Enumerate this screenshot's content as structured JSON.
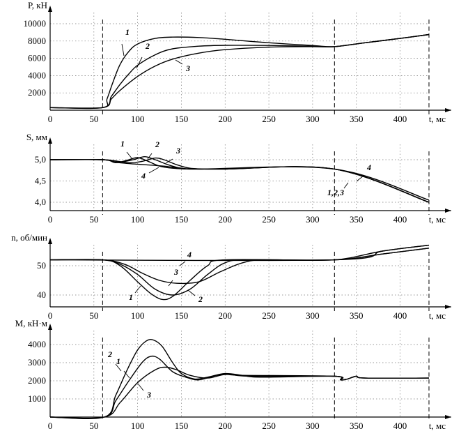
{
  "chart_data": [
    {
      "type": "line",
      "ylabel": "P, кН",
      "xlabel": "t, мс",
      "xlim": [
        0,
        435
      ],
      "ylim": [
        0,
        10000
      ],
      "xticks": [
        0,
        50,
        100,
        150,
        200,
        250,
        300,
        350,
        400
      ],
      "yticks": [
        2000,
        4000,
        6000,
        8000,
        10000
      ],
      "vlines": [
        60,
        325,
        433
      ],
      "series": [
        {
          "name": "1",
          "points": [
            [
              0,
              300
            ],
            [
              60,
              300
            ],
            [
              65,
              1300
            ],
            [
              72,
              3300
            ],
            [
              80,
              5300
            ],
            [
              90,
              6800
            ],
            [
              100,
              7650
            ],
            [
              120,
              8300
            ],
            [
              140,
              8450
            ],
            [
              170,
              8400
            ],
            [
              200,
              8200
            ],
            [
              250,
              7800
            ],
            [
              300,
              7480
            ],
            [
              325,
              7350
            ],
            [
              360,
              7800
            ],
            [
              400,
              8300
            ],
            [
              433,
              8750
            ]
          ]
        },
        {
          "name": "2",
          "points": [
            [
              0,
              300
            ],
            [
              60,
              300
            ],
            [
              70,
              1600
            ],
            [
              80,
              3000
            ],
            [
              90,
              4200
            ],
            [
              100,
              5200
            ],
            [
              120,
              6400
            ],
            [
              140,
              7100
            ],
            [
              170,
              7400
            ],
            [
              200,
              7500
            ],
            [
              250,
              7480
            ],
            [
              300,
              7400
            ],
            [
              325,
              7350
            ],
            [
              360,
              7800
            ],
            [
              400,
              8300
            ],
            [
              433,
              8750
            ]
          ]
        },
        {
          "name": "3",
          "points": [
            [
              0,
              300
            ],
            [
              60,
              300
            ],
            [
              70,
              1300
            ],
            [
              80,
              2300
            ],
            [
              100,
              3900
            ],
            [
              120,
              5100
            ],
            [
              140,
              5900
            ],
            [
              170,
              6600
            ],
            [
              200,
              7000
            ],
            [
              250,
              7300
            ],
            [
              300,
              7350
            ],
            [
              325,
              7350
            ],
            [
              360,
              7800
            ],
            [
              400,
              8300
            ],
            [
              433,
              8750
            ]
          ]
        }
      ],
      "annotations": [
        {
          "text": "1",
          "series": "1"
        },
        {
          "text": "2",
          "series": "2"
        },
        {
          "text": "3",
          "series": "3"
        }
      ]
    },
    {
      "type": "line",
      "ylabel": "S, мм",
      "xlabel": "t, мс",
      "xlim": [
        0,
        435
      ],
      "ylim": [
        3.9,
        5.1
      ],
      "xticks": [
        0,
        50,
        100,
        150,
        200,
        250,
        300,
        350,
        400
      ],
      "yticks": [
        "4,0",
        "4,5",
        "5,0"
      ],
      "ytick_values": [
        4.0,
        4.5,
        5.0
      ],
      "vlines": [
        60,
        325,
        433
      ],
      "series": [
        {
          "name": "1",
          "points": [
            [
              0,
              5.0
            ],
            [
              60,
              5.0
            ],
            [
              75,
              4.93
            ],
            [
              90,
              5.0
            ],
            [
              100,
              5.05
            ],
            [
              110,
              4.98
            ],
            [
              125,
              4.85
            ],
            [
              140,
              4.8
            ],
            [
              160,
              4.78
            ],
            [
              200,
              4.78
            ],
            [
              325,
              4.78
            ],
            [
              433,
              4.0
            ]
          ]
        },
        {
          "name": "2",
          "points": [
            [
              0,
              5.0
            ],
            [
              60,
              5.0
            ],
            [
              80,
              4.95
            ],
            [
              95,
              5.0
            ],
            [
              108,
              5.07
            ],
            [
              120,
              5.0
            ],
            [
              135,
              4.88
            ],
            [
              150,
              4.8
            ],
            [
              170,
              4.78
            ],
            [
              200,
              4.78
            ],
            [
              325,
              4.78
            ],
            [
              433,
              4.0
            ]
          ]
        },
        {
          "name": "3",
          "points": [
            [
              0,
              5.0
            ],
            [
              60,
              5.0
            ],
            [
              90,
              4.93
            ],
            [
              105,
              4.96
            ],
            [
              120,
              5.04
            ],
            [
              130,
              5.0
            ],
            [
              145,
              4.88
            ],
            [
              160,
              4.8
            ],
            [
              180,
              4.78
            ],
            [
              200,
              4.78
            ],
            [
              325,
              4.78
            ],
            [
              433,
              4.0
            ]
          ]
        },
        {
          "name": "4",
          "points": [
            [
              0,
              5.0
            ],
            [
              60,
              5.0
            ],
            [
              75,
              4.94
            ],
            [
              95,
              4.9
            ],
            [
              110,
              4.88
            ],
            [
              130,
              4.85
            ],
            [
              150,
              4.8
            ],
            [
              170,
              4.78
            ],
            [
              325,
              4.78
            ],
            [
              433,
              4.05
            ]
          ]
        }
      ],
      "annotations": [
        {
          "text": "1",
          "series": "1"
        },
        {
          "text": "2",
          "series": "2"
        },
        {
          "text": "3",
          "series": "3"
        },
        {
          "text": "4",
          "series": "4"
        },
        {
          "text": "4",
          "series": "4"
        },
        {
          "text": "1,2,3",
          "series": "1"
        }
      ]
    },
    {
      "type": "line",
      "ylabel": "n, об/мин",
      "xlabel": "t, мс",
      "xlim": [
        0,
        435
      ],
      "ylim": [
        35,
        58
      ],
      "xticks": [
        0,
        50,
        100,
        150,
        200,
        250,
        300,
        350,
        400
      ],
      "yticks": [
        40,
        50
      ],
      "vlines": [
        60,
        325,
        433
      ],
      "series": [
        {
          "name": "1",
          "points": [
            [
              0,
              52
            ],
            [
              60,
              52
            ],
            [
              80,
              50
            ],
            [
              100,
              44.5
            ],
            [
              115,
              40.5
            ],
            [
              128,
              38.5
            ],
            [
              140,
              39.5
            ],
            [
              160,
              45
            ],
            [
              180,
              50
            ],
            [
              200,
              52
            ],
            [
              325,
              52
            ],
            [
              380,
              54
            ],
            [
              433,
              56
            ]
          ]
        },
        {
          "name": "2",
          "points": [
            [
              0,
              52
            ],
            [
              60,
              52
            ],
            [
              80,
              50.5
            ],
            [
              100,
              47
            ],
            [
              120,
              42
            ],
            [
              140,
              40
            ],
            [
              160,
              42
            ],
            [
              180,
              47
            ],
            [
              200,
              51
            ],
            [
              225,
              52
            ],
            [
              325,
              52
            ],
            [
              380,
              54
            ],
            [
              433,
              56
            ]
          ]
        },
        {
          "name": "3",
          "points": [
            [
              0,
              52
            ],
            [
              60,
              52
            ],
            [
              85,
              50.5
            ],
            [
              105,
              47.5
            ],
            [
              125,
              45
            ],
            [
              145,
              44
            ],
            [
              170,
              44.5
            ],
            [
              195,
              48
            ],
            [
              220,
              51
            ],
            [
              245,
              52
            ],
            [
              325,
              52
            ],
            [
              380,
              55
            ],
            [
              433,
              57
            ]
          ]
        },
        {
          "name": "4",
          "points": [
            [
              0,
              52
            ],
            [
              325,
              52
            ],
            [
              380,
              55
            ],
            [
              433,
              57
            ]
          ]
        }
      ],
      "annotations": [
        {
          "text": "1",
          "series": "1"
        },
        {
          "text": "2",
          "series": "2"
        },
        {
          "text": "3",
          "series": "3"
        },
        {
          "text": "4",
          "series": "4"
        }
      ]
    },
    {
      "type": "line",
      "ylabel": "M, кН·м",
      "xlabel": "t, мс",
      "xlim": [
        0,
        435
      ],
      "ylim": [
        0,
        4800
      ],
      "xticks": [
        0,
        50,
        100,
        150,
        200,
        250,
        300,
        350,
        400
      ],
      "yticks": [
        1000,
        2000,
        3000,
        4000
      ],
      "vlines": [
        60,
        325,
        433
      ],
      "series": [
        {
          "name": "1",
          "points": [
            [
              0,
              0
            ],
            [
              62,
              0
            ],
            [
              75,
              1200
            ],
            [
              88,
              2600
            ],
            [
              100,
              3700
            ],
            [
              110,
              4200
            ],
            [
              118,
              4250
            ],
            [
              128,
              3900
            ],
            [
              140,
              3000
            ],
            [
              150,
              2400
            ],
            [
              165,
              2100
            ],
            [
              180,
              2200
            ],
            [
              200,
              2400
            ],
            [
              220,
              2300
            ],
            [
              240,
              2200
            ],
            [
              325,
              2250
            ],
            [
              332,
              2050
            ],
            [
              340,
              2100
            ],
            [
              350,
              2250
            ],
            [
              360,
              2150
            ],
            [
              433,
              2150
            ]
          ]
        },
        {
          "name": "2",
          "points": [
            [
              0,
              0
            ],
            [
              62,
              0
            ],
            [
              75,
              900
            ],
            [
              90,
              2000
            ],
            [
              105,
              3000
            ],
            [
              115,
              3350
            ],
            [
              125,
              3200
            ],
            [
              140,
              2500
            ],
            [
              155,
              2200
            ],
            [
              170,
              2050
            ],
            [
              190,
              2300
            ],
            [
              205,
              2350
            ],
            [
              230,
              2250
            ],
            [
              325,
              2250
            ],
            [
              332,
              2050
            ],
            [
              340,
              2100
            ],
            [
              350,
              2250
            ],
            [
              360,
              2150
            ],
            [
              433,
              2150
            ]
          ]
        },
        {
          "name": "3",
          "points": [
            [
              0,
              0
            ],
            [
              62,
              0
            ],
            [
              80,
              800
            ],
            [
              100,
              1900
            ],
            [
              120,
              2600
            ],
            [
              132,
              2750
            ],
            [
              145,
              2600
            ],
            [
              160,
              2300
            ],
            [
              180,
              2150
            ],
            [
              200,
              2350
            ],
            [
              220,
              2300
            ],
            [
              325,
              2250
            ],
            [
              332,
              2050
            ],
            [
              340,
              2100
            ],
            [
              350,
              2250
            ],
            [
              360,
              2150
            ],
            [
              433,
              2150
            ]
          ]
        }
      ],
      "annotations": [
        {
          "text": "1",
          "series": "1"
        },
        {
          "text": "2",
          "series": "2"
        },
        {
          "text": "3",
          "series": "3"
        }
      ]
    }
  ]
}
